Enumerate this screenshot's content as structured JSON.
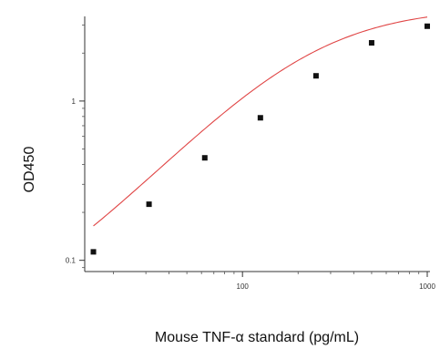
{
  "chart_data": {
    "type": "scatter",
    "title": "",
    "xlabel": "Mouse TNF-α standard (pg/mL)",
    "ylabel": "OD450",
    "x_scale": "log",
    "y_scale": "log",
    "xlim": [
      14,
      1000
    ],
    "ylim": [
      0.085,
      3.4
    ],
    "x_ticks": [
      {
        "value": 100,
        "label": "100"
      },
      {
        "value": 1000,
        "label": "1000"
      }
    ],
    "y_ticks": [
      {
        "value": 0.1,
        "label": "0.1"
      },
      {
        "value": 1,
        "label": "1"
      }
    ],
    "grid": false,
    "series": [
      {
        "points": [
          {
            "x": 15.6,
            "y": 0.113
          },
          {
            "x": 31.2,
            "y": 0.225
          },
          {
            "x": 62.5,
            "y": 0.44
          },
          {
            "x": 125,
            "y": 0.785
          },
          {
            "x": 250,
            "y": 1.44
          },
          {
            "x": 500,
            "y": 2.32
          },
          {
            "x": 1000,
            "y": 2.95
          }
        ]
      }
    ],
    "fit_curve": {
      "type": "4PL",
      "color": "#e04545"
    },
    "marker_color": "#111111"
  }
}
